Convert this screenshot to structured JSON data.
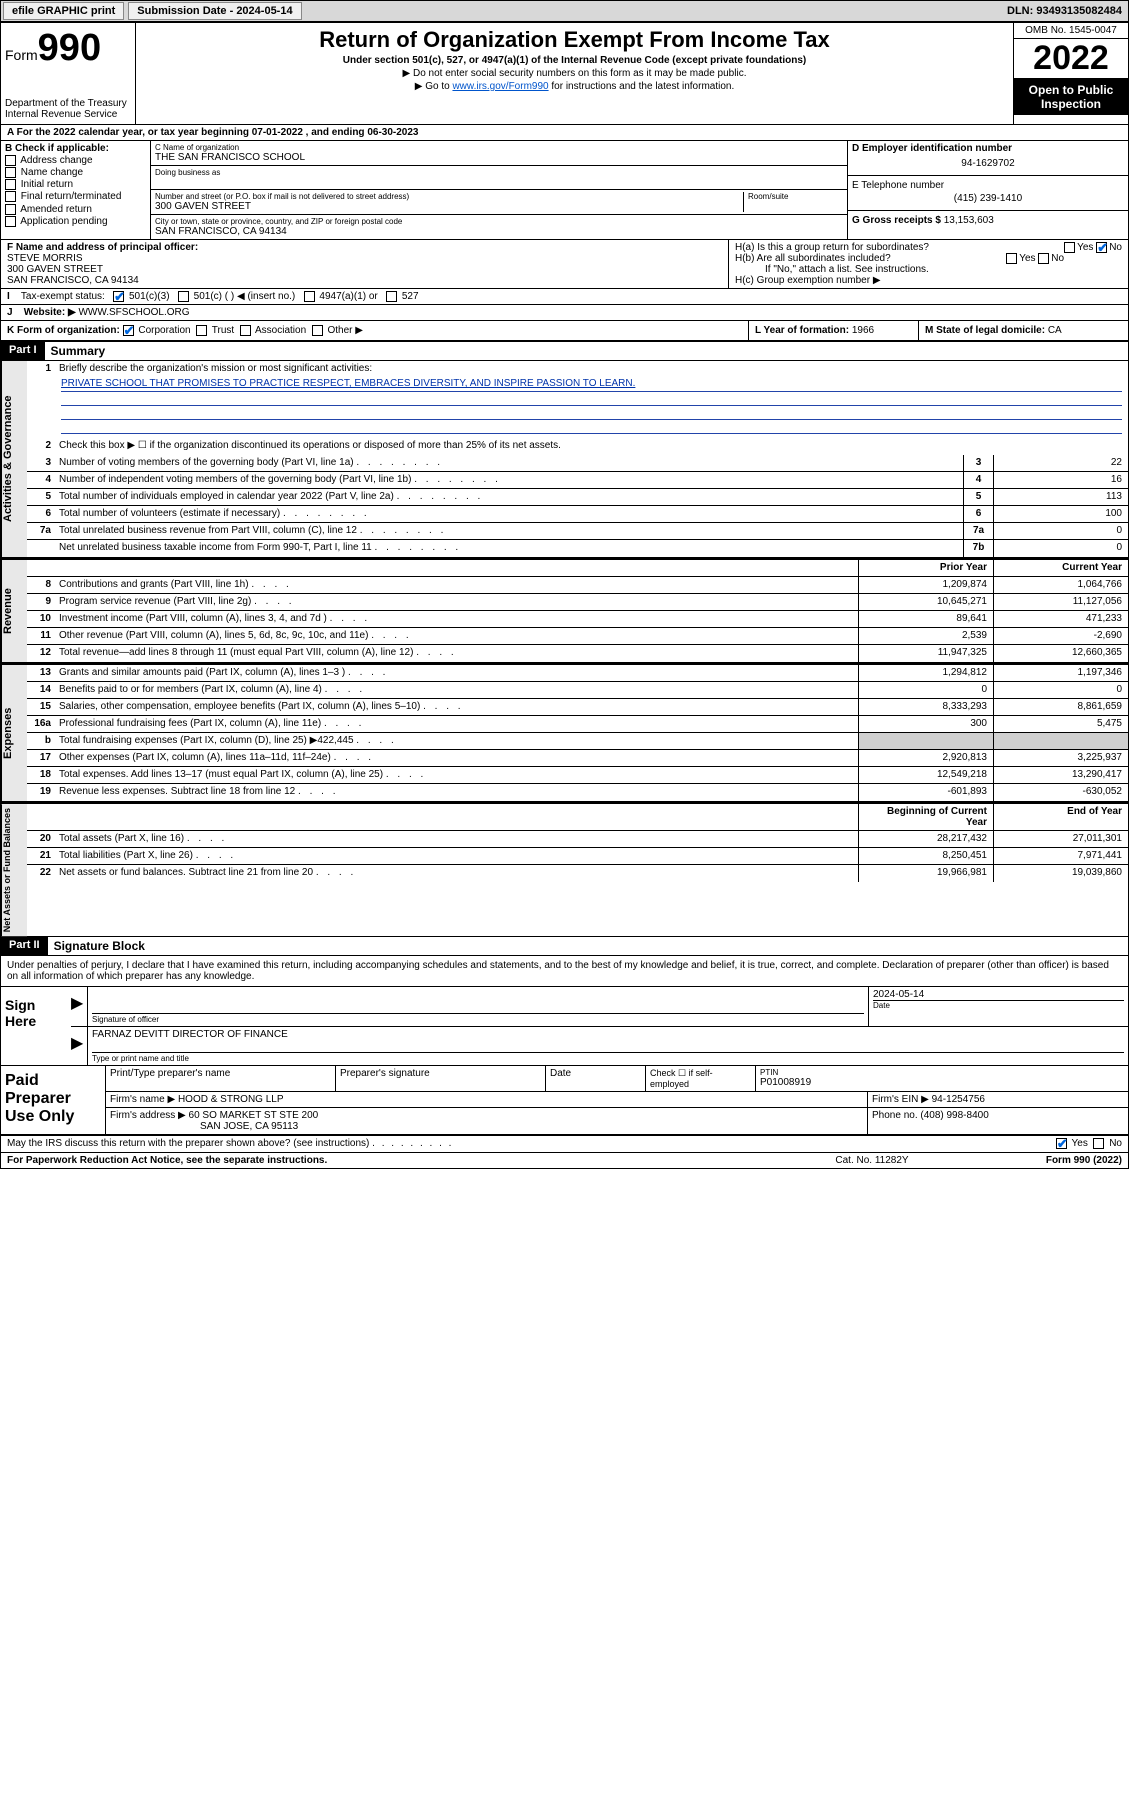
{
  "topbar": {
    "efile": "efile GRAPHIC print",
    "submission_label": "Submission Date - 2024-05-14",
    "dln_label": "DLN: 93493135082484"
  },
  "header": {
    "form_word": "Form",
    "form_number": "990",
    "dept": "Department of the Treasury",
    "irs": "Internal Revenue Service",
    "title": "Return of Organization Exempt From Income Tax",
    "subtitle": "Under section 501(c), 527, or 4947(a)(1) of the Internal Revenue Code (except private foundations)",
    "line2": "▶ Do not enter social security numbers on this form as it may be made public.",
    "line3_pre": "▶ Go to ",
    "line3_link": "www.irs.gov/Form990",
    "line3_post": " for instructions and the latest information.",
    "omb": "OMB No. 1545-0047",
    "year": "2022",
    "open": "Open to Public Inspection"
  },
  "rowA": "A For the 2022 calendar year, or tax year beginning 07-01-2022   , and ending 06-30-2023",
  "colB": {
    "title": "B Check if applicable:",
    "opts": [
      "Address change",
      "Name change",
      "Initial return",
      "Final return/terminated",
      "Amended return",
      "Application pending"
    ]
  },
  "colC": {
    "name_lbl": "C Name of organization",
    "name": "THE SAN FRANCISCO SCHOOL",
    "dba_lbl": "Doing business as",
    "addr_lbl": "Number and street (or P.O. box if mail is not delivered to street address)",
    "room_lbl": "Room/suite",
    "addr": "300 GAVEN STREET",
    "city_lbl": "City or town, state or province, country, and ZIP or foreign postal code",
    "city": "SAN FRANCISCO, CA  94134"
  },
  "colDE": {
    "d_lbl": "D Employer identification number",
    "d_val": "94-1629702",
    "e_lbl": "E Telephone number",
    "e_val": "(415) 239-1410",
    "g_lbl": "G Gross receipts $ ",
    "g_val": "13,153,603"
  },
  "rowF": {
    "lbl": "F Name and address of principal officer:",
    "l1": "STEVE MORRIS",
    "l2": "300 GAVEN STREET",
    "l3": "SAN FRANCISCO, CA  94134"
  },
  "rowH": {
    "ha": "H(a)  Is this a group return for subordinates?",
    "hb": "H(b)  Are all subordinates included?",
    "hb_note": "If \"No,\" attach a list. See instructions.",
    "hc": "H(c)  Group exemption number ▶"
  },
  "rowI": {
    "lbl": "Tax-exempt status:",
    "o1": "501(c)(3)",
    "o2": "501(c) (   ) ◀ (insert no.)",
    "o3": "4947(a)(1) or",
    "o4": "527"
  },
  "rowJ": {
    "lbl": "Website: ▶",
    "val": "WWW.SFSCHOOL.ORG"
  },
  "rowK": {
    "lbl": "K Form of organization:",
    "opts": [
      "Corporation",
      "Trust",
      "Association",
      "Other ▶"
    ],
    "l_lbl": "L Year of formation: ",
    "l_val": "1966",
    "m_lbl": "M State of legal domicile: ",
    "m_val": "CA"
  },
  "part1": {
    "hdr": "Part I",
    "title": "Summary",
    "l1_lbl": "Briefly describe the organization's mission or most significant activities:",
    "l1_val": "PRIVATE SCHOOL THAT PROMISES TO PRACTICE RESPECT, EMBRACES DIVERSITY, AND INSPIRE PASSION TO LEARN.",
    "l2": "Check this box ▶ ☐  if the organization discontinued its operations or disposed of more than 25% of its net assets.",
    "sections": {
      "gov": "Activities & Governance",
      "rev": "Revenue",
      "exp": "Expenses",
      "net": "Net Assets or Fund Balances"
    },
    "hdr_prior": "Prior Year",
    "hdr_curr": "Current Year",
    "hdr_beg": "Beginning of Current Year",
    "hdr_end": "End of Year",
    "lines_gov": [
      {
        "n": "3",
        "d": "Number of voting members of the governing body (Part VI, line 1a)",
        "box": "3",
        "v": "22"
      },
      {
        "n": "4",
        "d": "Number of independent voting members of the governing body (Part VI, line 1b)",
        "box": "4",
        "v": "16"
      },
      {
        "n": "5",
        "d": "Total number of individuals employed in calendar year 2022 (Part V, line 2a)",
        "box": "5",
        "v": "113"
      },
      {
        "n": "6",
        "d": "Total number of volunteers (estimate if necessary)",
        "box": "6",
        "v": "100"
      },
      {
        "n": "7a",
        "d": "Total unrelated business revenue from Part VIII, column (C), line 12",
        "box": "7a",
        "v": "0"
      },
      {
        "n": "",
        "d": "Net unrelated business taxable income from Form 990-T, Part I, line 11",
        "box": "7b",
        "v": "0"
      }
    ],
    "lines_rev": [
      {
        "n": "8",
        "d": "Contributions and grants (Part VIII, line 1h)",
        "p": "1,209,874",
        "c": "1,064,766"
      },
      {
        "n": "9",
        "d": "Program service revenue (Part VIII, line 2g)",
        "p": "10,645,271",
        "c": "11,127,056"
      },
      {
        "n": "10",
        "d": "Investment income (Part VIII, column (A), lines 3, 4, and 7d )",
        "p": "89,641",
        "c": "471,233"
      },
      {
        "n": "11",
        "d": "Other revenue (Part VIII, column (A), lines 5, 6d, 8c, 9c, 10c, and 11e)",
        "p": "2,539",
        "c": "-2,690"
      },
      {
        "n": "12",
        "d": "Total revenue—add lines 8 through 11 (must equal Part VIII, column (A), line 12)",
        "p": "11,947,325",
        "c": "12,660,365"
      }
    ],
    "lines_exp": [
      {
        "n": "13",
        "d": "Grants and similar amounts paid (Part IX, column (A), lines 1–3 )",
        "p": "1,294,812",
        "c": "1,197,346"
      },
      {
        "n": "14",
        "d": "Benefits paid to or for members (Part IX, column (A), line 4)",
        "p": "0",
        "c": "0"
      },
      {
        "n": "15",
        "d": "Salaries, other compensation, employee benefits (Part IX, column (A), lines 5–10)",
        "p": "8,333,293",
        "c": "8,861,659"
      },
      {
        "n": "16a",
        "d": "Professional fundraising fees (Part IX, column (A), line 11e)",
        "p": "300",
        "c": "5,475"
      },
      {
        "n": "b",
        "d": "Total fundraising expenses (Part IX, column (D), line 25) ▶422,445",
        "p": "",
        "c": "",
        "shade": true
      },
      {
        "n": "17",
        "d": "Other expenses (Part IX, column (A), lines 11a–11d, 11f–24e)",
        "p": "2,920,813",
        "c": "3,225,937"
      },
      {
        "n": "18",
        "d": "Total expenses. Add lines 13–17 (must equal Part IX, column (A), line 25)",
        "p": "12,549,218",
        "c": "13,290,417"
      },
      {
        "n": "19",
        "d": "Revenue less expenses. Subtract line 18 from line 12",
        "p": "-601,893",
        "c": "-630,052"
      }
    ],
    "lines_net": [
      {
        "n": "20",
        "d": "Total assets (Part X, line 16)",
        "p": "28,217,432",
        "c": "27,011,301"
      },
      {
        "n": "21",
        "d": "Total liabilities (Part X, line 26)",
        "p": "8,250,451",
        "c": "7,971,441"
      },
      {
        "n": "22",
        "d": "Net assets or fund balances. Subtract line 21 from line 20",
        "p": "19,966,981",
        "c": "19,039,860"
      }
    ]
  },
  "part2": {
    "hdr": "Part II",
    "title": "Signature Block",
    "intro": "Under penalties of perjury, I declare that I have examined this return, including accompanying schedules and statements, and to the best of my knowledge and belief, it is true, correct, and complete. Declaration of preparer (other than officer) is based on all information of which preparer has any knowledge.",
    "sign_here": "Sign Here",
    "sig_officer_lbl": "Signature of officer",
    "sig_date": "2024-05-14",
    "date_lbl": "Date",
    "officer_name": "FARNAZ DEVITT  DIRECTOR OF FINANCE",
    "officer_lbl": "Type or print name and title",
    "paid": "Paid Preparer Use Only",
    "pcol1": "Print/Type preparer's name",
    "pcol2": "Preparer's signature",
    "pcol3": "Date",
    "pcol4_a": "Check ☐ if self-employed",
    "pcol5_lbl": "PTIN",
    "pcol5_val": "P01008919",
    "firm_name_lbl": "Firm's name    ▶",
    "firm_name": "HOOD & STRONG LLP",
    "firm_ein_lbl": "Firm's EIN ▶",
    "firm_ein": "94-1254756",
    "firm_addr_lbl": "Firm's address ▶",
    "firm_addr1": "60 SO MARKET ST STE 200",
    "firm_addr2": "SAN JOSE, CA  95113",
    "phone_lbl": "Phone no. ",
    "phone": "(408) 998-8400",
    "discuss": "May the IRS discuss this return with the preparer shown above? (see instructions)",
    "paperwork": "For Paperwork Reduction Act Notice, see the separate instructions.",
    "catno": "Cat. No. 11282Y",
    "formno": "Form 990 (2022)"
  },
  "yesno": {
    "yes": "Yes",
    "no": "No"
  }
}
